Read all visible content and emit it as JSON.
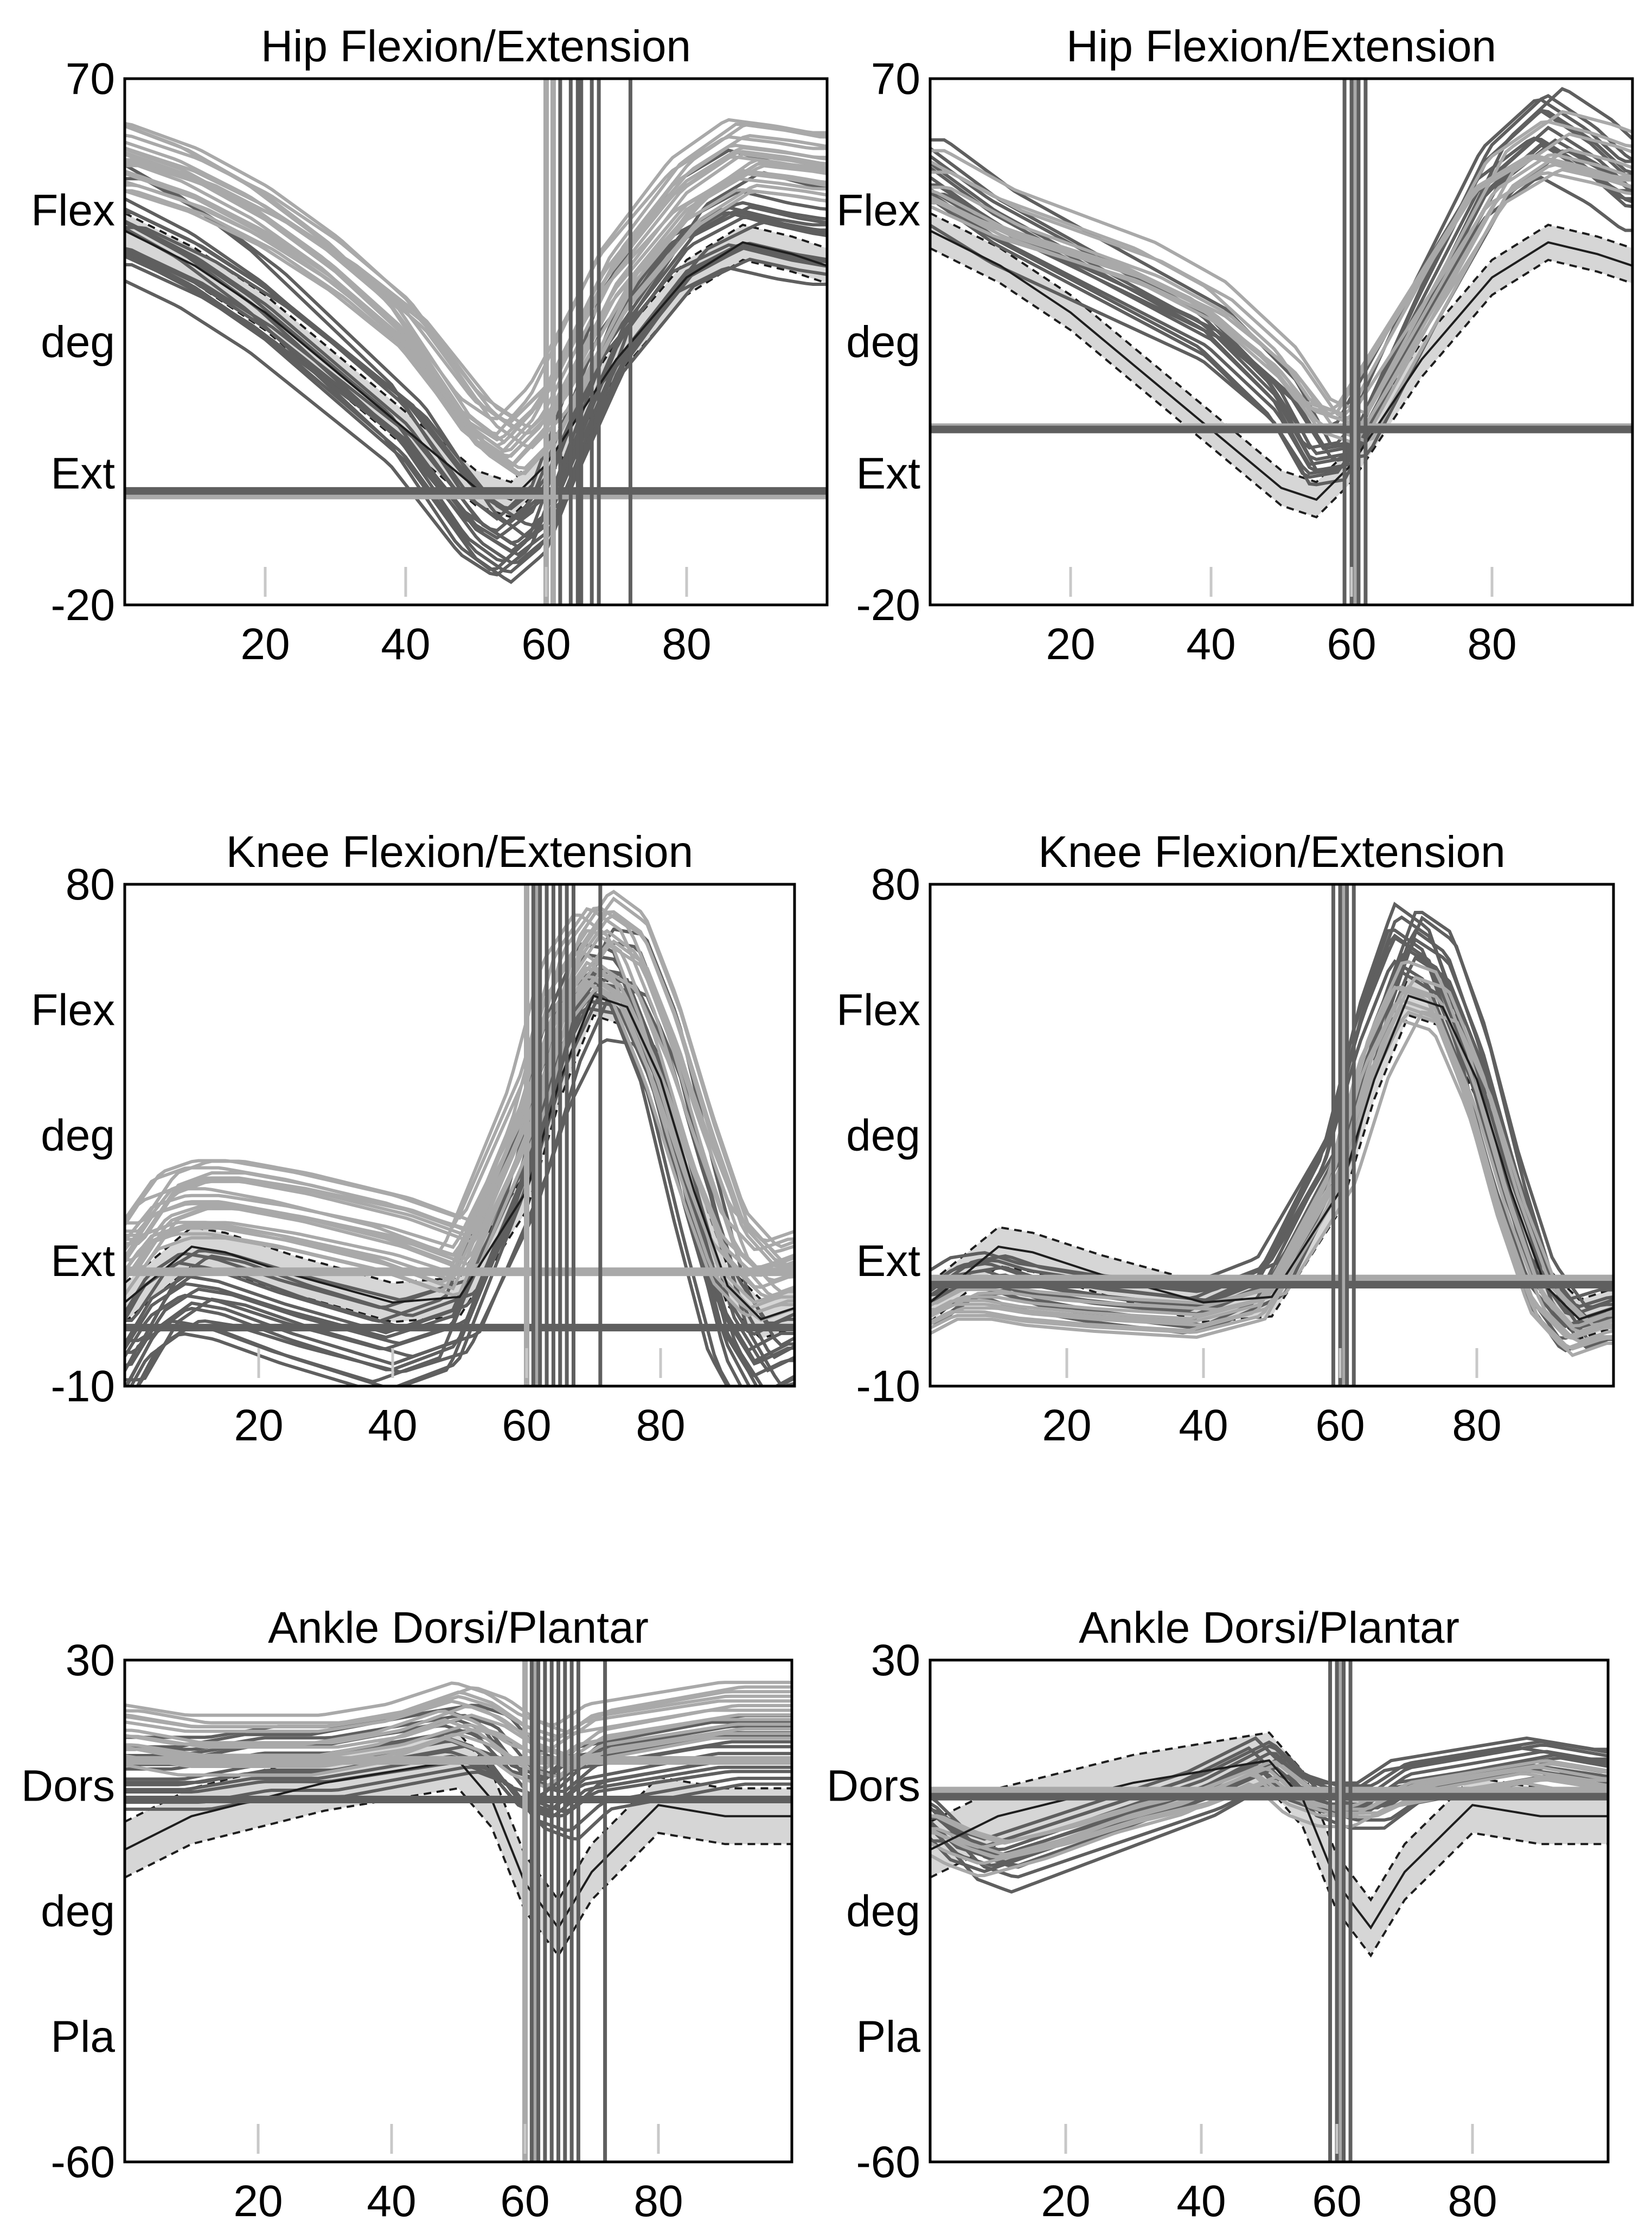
{
  "figure": {
    "background": "#ffffff"
  },
  "colors": {
    "dark": "#5f5f5f",
    "light": "#a9a9a9",
    "band": "#d6d6d6",
    "mean": "#1e1e1e",
    "frame": "#000000"
  },
  "chart_data": [
    {
      "type": "line",
      "title": "Hip Flexion/Extension",
      "xlabel": "",
      "ylabel": "deg",
      "xlim": [
        0,
        100
      ],
      "ylim": [
        -20,
        70
      ],
      "xticks": [
        20,
        40,
        60,
        80
      ],
      "yticks": [
        -20,
        70
      ],
      "ylabels": [
        "Flex",
        "deg",
        "Ext"
      ],
      "grid": false,
      "reference_lines": {
        "dark": -0.5,
        "light": -1.2
      },
      "normal_band": {
        "x": [
          0,
          10,
          20,
          30,
          40,
          50,
          55,
          60,
          70,
          80,
          88,
          95,
          100
        ],
        "mean": [
          44,
          38,
          30,
          20,
          10,
          0,
          -2,
          4,
          22,
          36,
          42,
          40,
          38
        ],
        "sd": 3
      },
      "event_lines": {
        "dark": [
          62,
          63.5,
          64.5,
          65,
          66.5,
          67.5,
          72
        ],
        "light": [
          60,
          61
        ]
      },
      "series": [
        {
          "name": "dark",
          "spread": [
            -6,
            6,
            3.5
          ],
          "bias": 0,
          "x": [
            0,
            10,
            20,
            30,
            40,
            50,
            55,
            60,
            70,
            80,
            88,
            95,
            100
          ],
          "values": [
            44,
            38,
            30,
            20,
            10,
            -6,
            -10,
            -5,
            24,
            40,
            45,
            43,
            42
          ]
        },
        {
          "name": "light",
          "spread": [
            0,
            10,
            4
          ],
          "bias": 0,
          "x": [
            0,
            10,
            20,
            30,
            40,
            50,
            55,
            60,
            70,
            80,
            88,
            95,
            100
          ],
          "values": [
            50,
            46,
            40,
            32,
            22,
            6,
            2,
            8,
            30,
            44,
            50,
            49,
            48
          ]
        }
      ]
    },
    {
      "type": "line",
      "title": "Hip Flexion/Extension",
      "xlabel": "",
      "ylabel": "deg",
      "xlim": [
        0,
        100
      ],
      "ylim": [
        -20,
        70
      ],
      "xticks": [
        20,
        40,
        60,
        80
      ],
      "yticks": [
        -20,
        70
      ],
      "ylabels": [
        "Flex",
        "deg",
        "Ext"
      ],
      "grid": false,
      "reference_lines": {
        "dark": 10,
        "light": 10.3
      },
      "normal_band": {
        "x": [
          0,
          10,
          20,
          30,
          40,
          50,
          55,
          60,
          70,
          80,
          88,
          95,
          100
        ],
        "mean": [
          44,
          38,
          30,
          20,
          10,
          0,
          -2,
          4,
          22,
          36,
          42,
          40,
          38
        ],
        "sd": 3
      },
      "event_lines": {
        "dark": [
          59,
          60,
          61,
          62
        ],
        "light": [
          60.5
        ]
      },
      "series": [
        {
          "name": "dark",
          "spread": [
            -4,
            4,
            2.5
          ],
          "bias": 0,
          "x": [
            0,
            10,
            20,
            30,
            40,
            50,
            55,
            60,
            70,
            80,
            88,
            95,
            100
          ],
          "values": [
            52,
            44,
            38,
            32,
            26,
            15,
            5,
            6,
            30,
            52,
            60,
            55,
            50
          ]
        },
        {
          "name": "light",
          "spread": [
            -2,
            4,
            2
          ],
          "bias": 0,
          "x": [
            0,
            10,
            20,
            30,
            40,
            50,
            55,
            60,
            70,
            80,
            88,
            95,
            100
          ],
          "values": [
            50,
            44,
            40,
            36,
            30,
            20,
            12,
            10,
            30,
            50,
            56,
            54,
            52
          ]
        }
      ]
    },
    {
      "type": "line",
      "title": "Knee Flexion/Extension",
      "xlabel": "",
      "ylabel": "deg",
      "xlim": [
        0,
        100
      ],
      "ylim": [
        -10,
        80
      ],
      "xticks": [
        20,
        40,
        60,
        80
      ],
      "yticks": [
        -10,
        80
      ],
      "ylabels": [
        "Flex",
        "deg",
        "Ext"
      ],
      "grid": false,
      "reference_lines": {
        "dark": 0.5,
        "light": 10.5
      },
      "normal_band": {
        "x": [
          0,
          5,
          10,
          15,
          25,
          40,
          50,
          60,
          65,
          70,
          75,
          80,
          85,
          90,
          95,
          100
        ],
        "mean": [
          5,
          10,
          15,
          14,
          10,
          5,
          6,
          25,
          45,
          60,
          58,
          45,
          25,
          8,
          2,
          4
        ],
        "sd": 3.5
      },
      "event_lines": {
        "dark": [
          61,
          62,
          63,
          64,
          65,
          66,
          67,
          71
        ],
        "light": [
          60,
          61.5
        ]
      },
      "series": [
        {
          "name": "dark",
          "spread": [
            -10,
            6,
            3.2
          ],
          "bias": 0,
          "x": [
            0,
            5,
            10,
            15,
            25,
            40,
            50,
            60,
            65,
            70,
            75,
            80,
            85,
            90,
            95,
            100
          ],
          "values": [
            -5,
            5,
            9,
            8,
            4,
            -1,
            3,
            30,
            50,
            63,
            62,
            48,
            25,
            4,
            -6,
            -3
          ]
        },
        {
          "name": "light",
          "spread": [
            -6,
            8,
            4
          ],
          "bias": 0,
          "x": [
            0,
            5,
            10,
            15,
            25,
            40,
            50,
            60,
            65,
            70,
            75,
            80,
            85,
            90,
            95,
            100
          ],
          "values": [
            12,
            20,
            22,
            22,
            20,
            16,
            12,
            38,
            58,
            66,
            62,
            48,
            30,
            14,
            8,
            10
          ]
        }
      ]
    },
    {
      "type": "line",
      "title": "Knee Flexion/Extension",
      "xlabel": "",
      "ylabel": "deg",
      "xlim": [
        0,
        100
      ],
      "ylim": [
        -10,
        80
      ],
      "xticks": [
        20,
        40,
        60,
        80
      ],
      "yticks": [
        -10,
        80
      ],
      "ylabels": [
        "Flex",
        "deg",
        "Ext"
      ],
      "grid": false,
      "reference_lines": {
        "dark": 8.2,
        "light": 9.2
      },
      "normal_band": {
        "x": [
          0,
          5,
          10,
          15,
          25,
          40,
          50,
          60,
          65,
          70,
          75,
          80,
          85,
          90,
          95,
          100
        ],
        "mean": [
          5,
          10,
          15,
          14,
          10,
          5,
          6,
          25,
          45,
          60,
          58,
          45,
          25,
          8,
          2,
          4
        ],
        "sd": 3.5
      },
      "event_lines": {
        "dark": [
          59,
          60,
          61,
          62
        ],
        "light": [
          60.5
        ]
      },
      "series": [
        {
          "name": "dark",
          "spread": [
            -3,
            5,
            2.5
          ],
          "bias": 0,
          "x": [
            0,
            5,
            10,
            15,
            25,
            40,
            50,
            60,
            65,
            70,
            75,
            80,
            85,
            90,
            95,
            100
          ],
          "values": [
            4,
            8,
            9,
            7,
            5,
            3,
            8,
            30,
            52,
            68,
            64,
            48,
            26,
            8,
            0,
            2
          ]
        },
        {
          "name": "light",
          "spread": [
            -6,
            0,
            2
          ],
          "bias": 0,
          "x": [
            0,
            5,
            10,
            15,
            25,
            40,
            50,
            60,
            65,
            70,
            75,
            80,
            85,
            90,
            95,
            100
          ],
          "values": [
            5,
            8,
            8,
            7,
            6,
            5,
            8,
            28,
            48,
            60,
            58,
            44,
            24,
            8,
            2,
            4
          ]
        }
      ]
    },
    {
      "type": "line",
      "title": "Ankle Dorsi/Plantar",
      "xlabel": "",
      "ylabel": "deg",
      "xlim": [
        0,
        100
      ],
      "ylim": [
        -60,
        30
      ],
      "xticks": [
        20,
        40,
        60,
        80
      ],
      "yticks": [
        -60,
        30
      ],
      "ylabels": [
        "Dors",
        "deg",
        "Pla"
      ],
      "grid": false,
      "reference_lines": {
        "dark": 5,
        "light": 12
      },
      "normal_band": {
        "x": [
          0,
          10,
          20,
          30,
          40,
          50,
          55,
          60,
          65,
          70,
          80,
          90,
          100
        ],
        "mean": [
          -4,
          2,
          5,
          8,
          10,
          12,
          5,
          -10,
          -18,
          -8,
          4,
          2,
          2
        ],
        "sd": 5
      },
      "event_lines": {
        "dark": [
          61,
          62,
          63,
          64,
          65,
          66,
          67,
          68,
          72
        ],
        "light": [
          60,
          61.5
        ]
      },
      "series": [
        {
          "name": "dark",
          "spread": [
            -4,
            8,
            2.8
          ],
          "bias": 0,
          "x": [
            0,
            10,
            20,
            30,
            40,
            50,
            55,
            60,
            65,
            70,
            80,
            90,
            100
          ],
          "values": [
            8,
            8,
            10,
            10,
            12,
            14,
            12,
            5,
            3,
            8,
            10,
            12,
            12
          ]
        },
        {
          "name": "light",
          "spread": [
            -2,
            8,
            2.5
          ],
          "bias": 0,
          "x": [
            0,
            10,
            20,
            30,
            40,
            50,
            55,
            60,
            65,
            70,
            80,
            90,
            100
          ],
          "values": [
            14,
            12,
            12,
            12,
            14,
            18,
            16,
            12,
            10,
            14,
            16,
            18,
            18
          ]
        }
      ]
    },
    {
      "type": "line",
      "title": "Ankle Dorsi/Plantar",
      "xlabel": "",
      "ylabel": "deg",
      "xlim": [
        0,
        100
      ],
      "ylim": [
        -60,
        30
      ],
      "xticks": [
        20,
        40,
        60,
        80
      ],
      "yticks": [
        -60,
        30
      ],
      "ylabels": [
        "Dors",
        "deg",
        "Pla"
      ],
      "grid": false,
      "reference_lines": {
        "dark": 5.5,
        "light": 6.5
      },
      "normal_band": {
        "x": [
          0,
          10,
          20,
          30,
          40,
          50,
          55,
          60,
          65,
          70,
          80,
          90,
          100
        ],
        "mean": [
          -4,
          2,
          5,
          8,
          10,
          12,
          5,
          -10,
          -18,
          -8,
          4,
          2,
          2
        ],
        "sd": 5
      },
      "event_lines": {
        "dark": [
          59,
          60,
          61,
          62
        ],
        "light": [
          60.5
        ]
      },
      "series": [
        {
          "name": "dark",
          "spread": [
            -3,
            4,
            2.5
          ],
          "bias": 0,
          "x": [
            0,
            5,
            10,
            20,
            30,
            40,
            50,
            55,
            60,
            65,
            70,
            80,
            90,
            100
          ],
          "values": [
            2,
            -4,
            -6,
            -2,
            2,
            6,
            12,
            6,
            4,
            4,
            8,
            10,
            12,
            10
          ]
        },
        {
          "name": "light",
          "spread": [
            -2,
            2,
            1.5
          ],
          "bias": 0,
          "x": [
            0,
            5,
            10,
            20,
            30,
            40,
            50,
            55,
            60,
            65,
            70,
            80,
            90,
            100
          ],
          "values": [
            0,
            -3,
            -5,
            -2,
            2,
            5,
            10,
            5,
            3,
            3,
            6,
            8,
            10,
            8
          ]
        }
      ]
    }
  ]
}
